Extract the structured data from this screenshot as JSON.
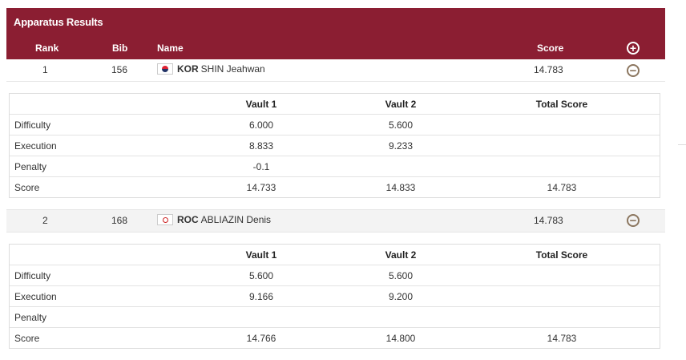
{
  "panel": {
    "title": "Apparatus Results",
    "columns": {
      "rank": "Rank",
      "bib": "Bib",
      "name": "Name",
      "score": "Score"
    },
    "expand_all_icon": "plus-circle-icon",
    "collapse_icon": "minus-circle-icon"
  },
  "athletes": [
    {
      "rank": "1",
      "bib": "156",
      "noc": "KOR",
      "name": "SHIN Jeahwan",
      "score": "14.783",
      "flag_icon": "korea-flag-icon",
      "detail": {
        "headers": [
          "",
          "Vault 1",
          "Vault 2",
          "Total Score"
        ],
        "rows": [
          {
            "label": "Difficulty",
            "v1": "6.000",
            "v2": "5.600",
            "total": ""
          },
          {
            "label": "Execution",
            "v1": "8.833",
            "v2": "9.233",
            "total": ""
          },
          {
            "label": "Penalty",
            "v1": "-0.1",
            "v2": "",
            "total": ""
          },
          {
            "label": "Score",
            "v1": "14.733",
            "v2": "14.833",
            "total": "14.783"
          }
        ]
      }
    },
    {
      "rank": "2",
      "bib": "168",
      "noc": "ROC",
      "name": "ABLIAZIN Denis",
      "score": "14.783",
      "flag_icon": "roc-flag-icon",
      "detail": {
        "headers": [
          "",
          "Vault 1",
          "Vault 2",
          "Total Score"
        ],
        "rows": [
          {
            "label": "Difficulty",
            "v1": "5.600",
            "v2": "5.600",
            "total": ""
          },
          {
            "label": "Execution",
            "v1": "9.166",
            "v2": "9.200",
            "total": ""
          },
          {
            "label": "Penalty",
            "v1": "",
            "v2": "",
            "total": ""
          },
          {
            "label": "Score",
            "v1": "14.766",
            "v2": "14.800",
            "total": "14.783"
          }
        ]
      }
    }
  ]
}
